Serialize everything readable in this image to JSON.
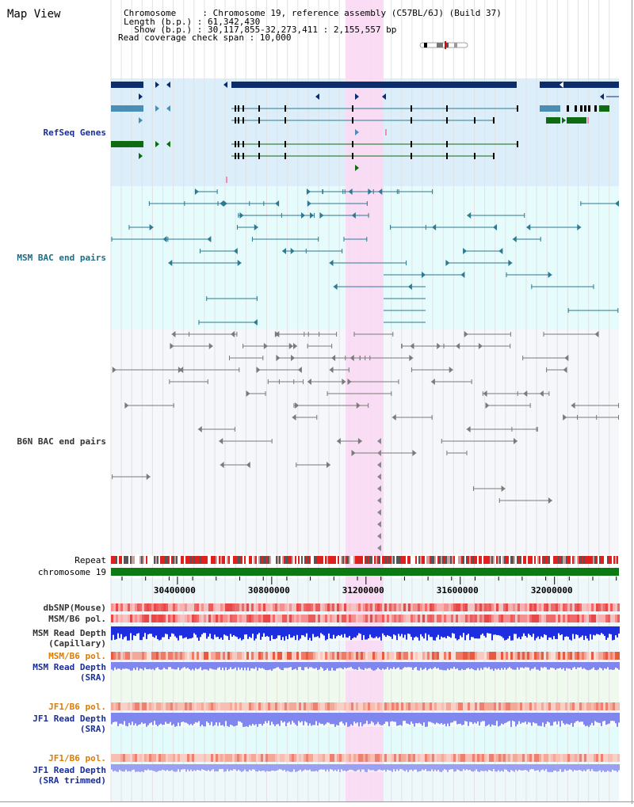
{
  "title": "Map View",
  "header": {
    "chromosome_line": "Chromosome     : Chromosome 19, reference assembly (C57BL/6J) (Build 37)",
    "length_line": "Length (b.p.) : 61,342,430",
    "show_line": "  Show (b.p.) : 30,117,855-32,273,411 : 2,155,557 bp",
    "coverage_line": "Read coverage check span : 10,000"
  },
  "tracks": {
    "refseq": "RefSeq Genes",
    "msm_bac": "MSM BAC end pairs",
    "b6n_bac": "B6N BAC end pairs",
    "repeat": "Repeat",
    "chromosome": "chromosome 19",
    "dbsnp": "dbSNP(Mouse)",
    "msm_b6_pol_1": "MSM/B6 pol.",
    "msm_read_depth_cap_1": "MSM Read Depth",
    "msm_read_depth_cap_2": "(Capillary)",
    "msm_b6_pol_2": "MSM/B6 pol.",
    "msm_read_depth_sra_1": "MSM Read Depth",
    "msm_read_depth_sra_2": "(SRA)",
    "jf1_b6_pol_1": "JF1/B6 pol.",
    "jf1_read_depth_sra_1": "JF1 Read Depth",
    "jf1_read_depth_sra_2": "(SRA)",
    "jf1_b6_pol_2": "JF1/B6 pol.",
    "jf1_read_depth_trim_1": "JF1 Read Depth",
    "jf1_read_depth_trim_2": "(SRA trimmed)"
  },
  "axis": {
    "ticks": [
      {
        "label": "30400000",
        "pos": 30400000
      },
      {
        "label": "30800000",
        "pos": 30800000
      },
      {
        "label": "31200000",
        "pos": 31200000
      },
      {
        "label": "31600000",
        "pos": 31600000
      },
      {
        "label": "32000000",
        "pos": 32000000
      }
    ],
    "start": 30117855,
    "end": 32273411
  },
  "colors": {
    "refseq_bg": "#dbeef9",
    "msm_bg": "#e6fbfb",
    "b6n_bg": "#f5f7fa",
    "highlight": "#f9d9f3",
    "refseq_dark": "#0d2c6b",
    "refseq_mid": "#4a8db5",
    "refseq_green": "#0f6b12",
    "msm_line": "#2b7a92",
    "b6n_line": "#7a7a7a",
    "chromosome": "#0b7a12",
    "label_dark": "#333333",
    "label_blue": "#1a2e9a",
    "label_teal": "#1b6d86",
    "label_orange": "#e07b00",
    "depth_dark": "#1c2ee0",
    "depth_light": "#7f86ee"
  }
}
